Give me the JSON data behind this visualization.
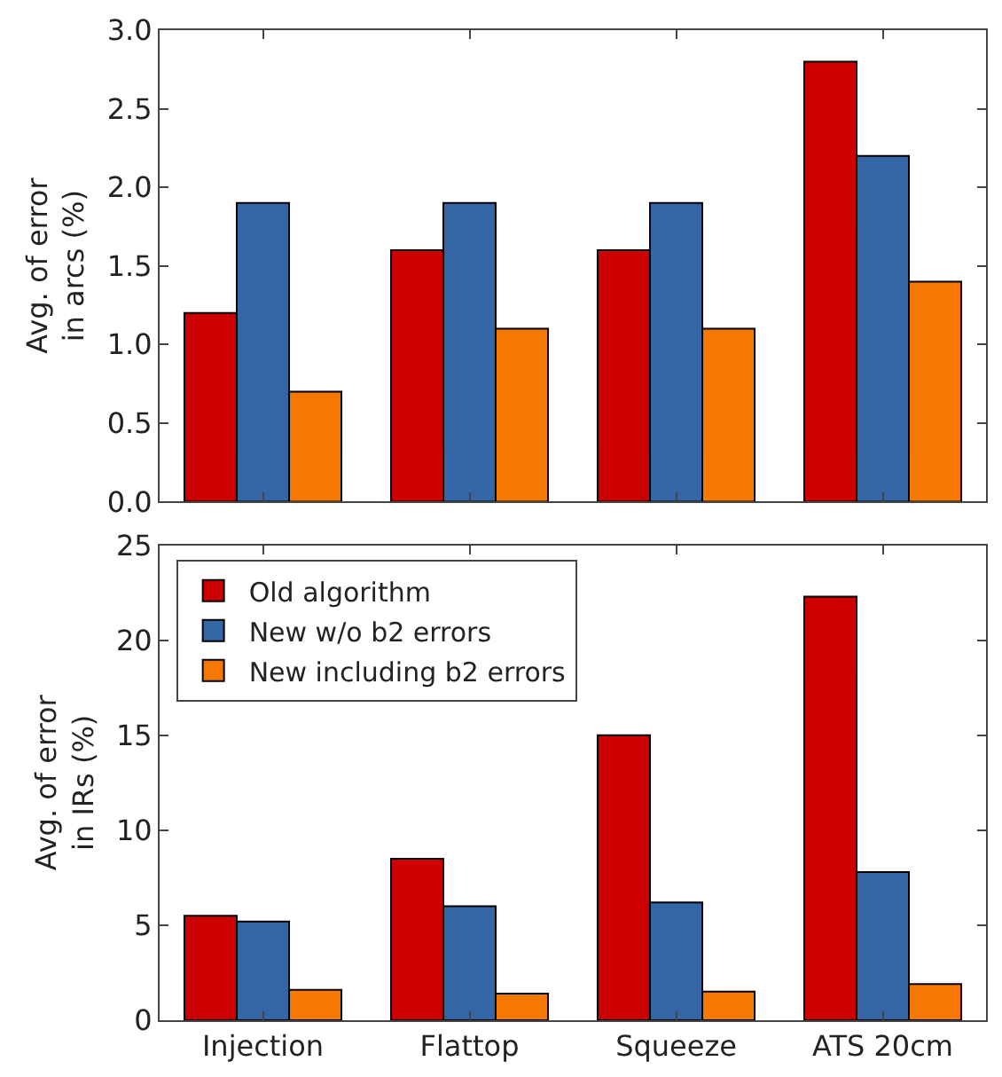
{
  "chart_data": [
    {
      "type": "bar",
      "ylabel": "Avg. of error\nin arcs (%)",
      "categories": [
        null,
        null,
        null,
        null
      ],
      "tick_labels": "y",
      "legend": false,
      "ylim": [
        0,
        3.0
      ],
      "yticks": [
        {
          "value": 0,
          "label": "0.0"
        },
        0.5,
        {
          "value": 1,
          "label": "1.0"
        },
        1.5,
        {
          "value": 2,
          "label": "2.0"
        },
        2.5,
        {
          "value": 3,
          "label": "3.0"
        }
      ],
      "series": [
        {
          "color": "#cc0000",
          "values": [
            1.2,
            1.6,
            1.6,
            2.8
          ]
        },
        {
          "color": "#3465a4",
          "values": [
            1.9,
            1.9,
            1.9,
            2.2
          ]
        },
        {
          "color": "#f57900",
          "values": [
            0.7,
            1.1,
            1.1,
            1.4
          ]
        }
      ]
    },
    {
      "type": "bar",
      "ylabel": "Avg. of error\nin IRs (%)",
      "categories": [
        "Injection",
        "Flattop",
        "Squeeze",
        "ATS 20cm"
      ],
      "legend": "top left",
      "ylim": [
        0,
        25
      ],
      "yticks": [
        0,
        5,
        10,
        15,
        20,
        25
      ],
      "series": [
        {
          "name": "Old algorithm",
          "color": "#cc0000",
          "values": [
            5.5,
            8.5,
            15.0,
            22.3
          ]
        },
        {
          "name": "New w/o b2 errors",
          "color": "#3465a4",
          "values": [
            5.2,
            6.0,
            6.2,
            7.8
          ]
        },
        {
          "name": "New including b2 errors",
          "color": "#f57900",
          "values": [
            1.6,
            1.4,
            1.5,
            1.9
          ]
        }
      ]
    }
  ]
}
